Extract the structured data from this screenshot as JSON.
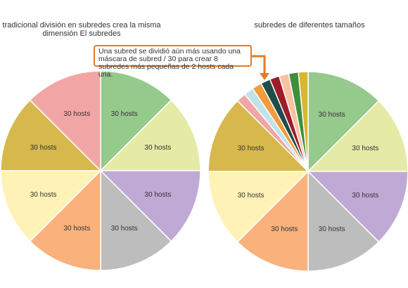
{
  "chart_data": [
    {
      "type": "pie",
      "title": "tradicional división en subredes crea la misma\ndimensión El subredes",
      "slices": [
        {
          "label": "30 hosts",
          "value": 1,
          "color": "#96c98c"
        },
        {
          "label": "30 hosts",
          "value": 1,
          "color": "#e6eaa7"
        },
        {
          "label": "30 hosts",
          "value": 1,
          "color": "#c1a9d5"
        },
        {
          "label": "30 hosts",
          "value": 1,
          "color": "#bdbdbd"
        },
        {
          "label": "30 hosts",
          "value": 1,
          "color": "#f9b27b"
        },
        {
          "label": "30 hosts",
          "value": 1,
          "color": "#fff2b6"
        },
        {
          "label": "30 hosts",
          "value": 1,
          "color": "#d6b84c"
        },
        {
          "label": "30 hosts",
          "value": 1,
          "color": "#f2a5a5"
        }
      ]
    },
    {
      "type": "pie",
      "title": "subredes de diferentes tamaños",
      "slices": [
        {
          "label": "30 hosts",
          "value": 1,
          "color": "#96c98c"
        },
        {
          "label": "30 hosts",
          "value": 1,
          "color": "#e6eaa7"
        },
        {
          "label": "30 hosts",
          "value": 1,
          "color": "#c1a9d5"
        },
        {
          "label": "30 hosts",
          "value": 1,
          "color": "#bdbdbd"
        },
        {
          "label": "30 hosts",
          "value": 1,
          "color": "#f9b27b"
        },
        {
          "label": "30 hosts",
          "value": 1,
          "color": "#fff2b6"
        },
        {
          "label": "30 hosts",
          "value": 1,
          "color": "#d6b84c"
        },
        {
          "label": "",
          "value": 0.125,
          "color": "#f2a5a5"
        },
        {
          "label": "",
          "value": 0.125,
          "color": "#bfe3e8"
        },
        {
          "label": "",
          "value": 0.125,
          "color": "#f39b3d"
        },
        {
          "label": "",
          "value": 0.125,
          "color": "#1f4e4a"
        },
        {
          "label": "",
          "value": 0.125,
          "color": "#9e1b2a"
        },
        {
          "label": "",
          "value": 0.125,
          "color": "#f6c3a5"
        },
        {
          "label": "",
          "value": 0.125,
          "color": "#3f8f3c"
        },
        {
          "label": "",
          "value": 0.125,
          "color": "#d8b53a"
        }
      ]
    }
  ],
  "callout": {
    "text": "Una subred se dividió aún más usando una máscara de subred / 30 para crear 8 subredes más pequeñas de 2 hosts cada una.",
    "border_color": "#e57b25",
    "arrow_color": "#e57b25"
  }
}
